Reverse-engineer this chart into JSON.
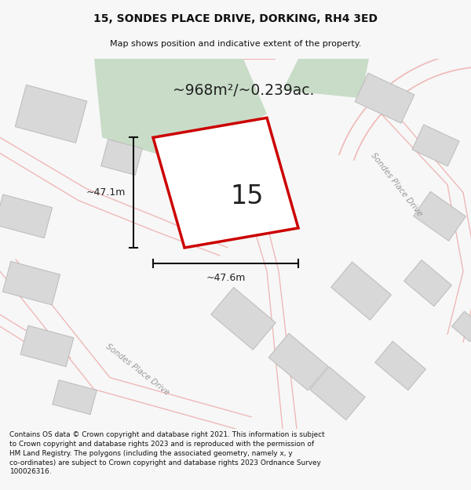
{
  "title_line1": "15, SONDES PLACE DRIVE, DORKING, RH4 3ED",
  "title_line2": "Map shows position and indicative extent of the property.",
  "area_text": "~968m²/~0.239ac.",
  "plot_number": "15",
  "dim_horizontal": "~47.6m",
  "dim_vertical": "~47.1m",
  "road_label1": "Sondes Place Drive",
  "road_label2": "Sondes Place Drive",
  "footer_text": "Contains OS data © Crown copyright and database right 2021. This information is subject to Crown copyright and database rights 2023 and is reproduced with the permission of HM Land Registry. The polygons (including the associated geometry, namely x, y co-ordinates) are subject to Crown copyright and database rights 2023 Ordnance Survey 100026316.",
  "bg_color": "#f7f7f7",
  "map_bg": "#ffffff",
  "plot_fill": "#ffffff",
  "plot_edge": "#cc0000",
  "road_color": "#f0b8b8",
  "road_lw": 1.0,
  "building_color": "#d8d8d8",
  "building_edge": "#bbbbbb",
  "green_color": "#c8dcc8",
  "dim_color": "#111111",
  "label_color": "#999999",
  "text_color": "#222222",
  "title_color": "#111111",
  "footer_color": "#111111"
}
